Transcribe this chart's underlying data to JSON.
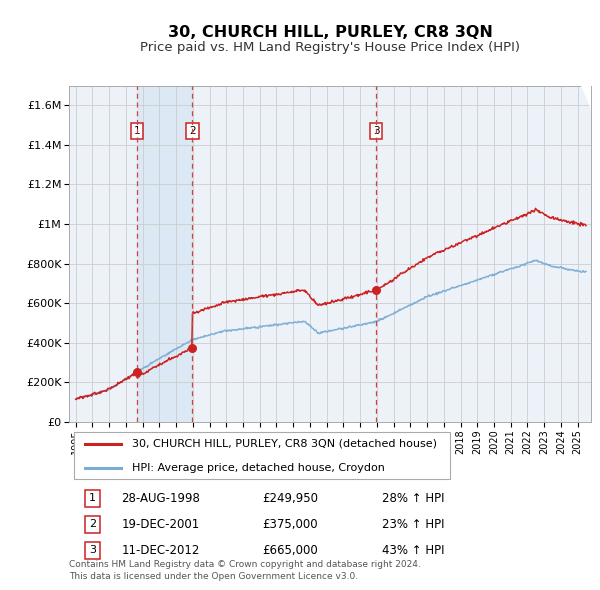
{
  "title": "30, CHURCH HILL, PURLEY, CR8 3QN",
  "subtitle": "Price paid vs. HM Land Registry's House Price Index (HPI)",
  "title_fontsize": 11.5,
  "subtitle_fontsize": 9.5,
  "legend1": "30, CHURCH HILL, PURLEY, CR8 3QN (detached house)",
  "legend2": "HPI: Average price, detached house, Croydon",
  "footer": "Contains HM Land Registry data © Crown copyright and database right 2024.\nThis data is licensed under the Open Government Licence v3.0.",
  "sale_dates": [
    1998.66,
    2001.97,
    2012.95
  ],
  "sale_prices": [
    249950,
    375000,
    665000
  ],
  "sale_labels": [
    "1",
    "2",
    "3"
  ],
  "vline_x": [
    1998.66,
    2001.97,
    2012.95
  ],
  "shade_regions": [
    [
      1998.66,
      2001.97
    ]
  ],
  "table_data": [
    [
      "1",
      "28-AUG-1998",
      "£249,950",
      "28% ↑ HPI"
    ],
    [
      "2",
      "19-DEC-2001",
      "£375,000",
      "23% ↑ HPI"
    ],
    [
      "3",
      "11-DEC-2012",
      "£665,000",
      "43% ↑ HPI"
    ]
  ],
  "hpi_color": "#7aadd4",
  "price_color": "#cc2222",
  "point_color": "#cc2222",
  "vline_color": "#cc4444",
  "shade_color": "#dde8f5",
  "grid_color": "#cccccc",
  "background_color": "#edf2f9",
  "ylim": [
    0,
    1700000
  ],
  "xlim_start": 1994.6,
  "xlim_end": 2025.8,
  "ylabel_ticks": [
    0,
    200000,
    400000,
    600000,
    800000,
    1000000,
    1200000,
    1400000,
    1600000
  ],
  "ytick_labels": [
    "£0",
    "£200K",
    "£400K",
    "£600K",
    "£800K",
    "£1M",
    "£1.2M",
    "£1.4M",
    "£1.6M"
  ]
}
